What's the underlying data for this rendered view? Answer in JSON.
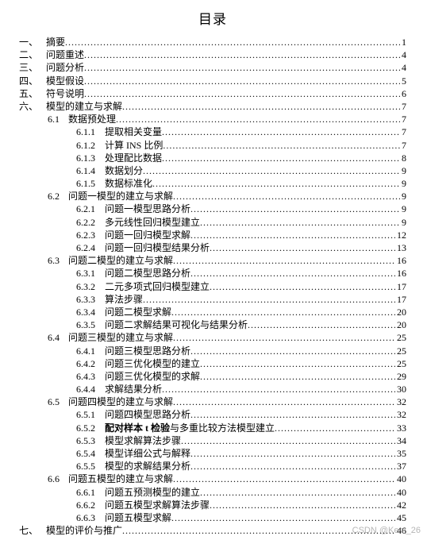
{
  "title": "目录",
  "watermark": "CSDN @Kem_26",
  "entries": [
    {
      "lvl": 1,
      "num": "一、",
      "label": "摘要",
      "pg": 1
    },
    {
      "lvl": 1,
      "num": "二、",
      "label": "问题重述",
      "pg": 4
    },
    {
      "lvl": 1,
      "num": "三、",
      "label": "问题分析",
      "pg": 4
    },
    {
      "lvl": 1,
      "num": "四、",
      "label": "模型假设",
      "pg": 5
    },
    {
      "lvl": 1,
      "num": "五、",
      "label": "符号说明",
      "pg": 6
    },
    {
      "lvl": 1,
      "num": "六、",
      "label": "模型的建立与求解",
      "pg": 7
    },
    {
      "lvl": 2,
      "num": "6.1",
      "label": "数据预处理",
      "pg": 7
    },
    {
      "lvl": 3,
      "num": "6.1.1",
      "label": "提取相关变量",
      "pg": 7
    },
    {
      "lvl": 3,
      "num": "6.1.2",
      "label": "计算 INS 比例",
      "pg": 7
    },
    {
      "lvl": 3,
      "num": "6.1.3",
      "label": "处理配比数据",
      "pg": 8
    },
    {
      "lvl": 3,
      "num": "6.1.4",
      "label": "数据划分",
      "pg": 9
    },
    {
      "lvl": 3,
      "num": "6.1.5",
      "label": "数据标准化",
      "pg": 9
    },
    {
      "lvl": 2,
      "num": "6.2",
      "label": "问题一模型的建立与求解",
      "pg": 9
    },
    {
      "lvl": 3,
      "num": "6.2.1",
      "label": "问题一模型思路分析",
      "pg": 9
    },
    {
      "lvl": 3,
      "num": "6.2.2",
      "label": "多元线性回归模型建立",
      "pg": 9
    },
    {
      "lvl": 3,
      "num": "6.2.3",
      "label": "问题一回归模型求解",
      "pg": 12
    },
    {
      "lvl": 3,
      "num": "6.2.4",
      "label": "问题一回归模型结果分析",
      "pg": 13
    },
    {
      "lvl": 2,
      "num": "6.3",
      "label": "问题二模型的建立与求解",
      "pg": 16
    },
    {
      "lvl": 3,
      "num": "6.3.1",
      "label": "问题二模型思路分析",
      "pg": 16
    },
    {
      "lvl": 3,
      "num": "6.3.2",
      "label": "二元多项式回归模型建立",
      "pg": 17
    },
    {
      "lvl": 3,
      "num": "6.3.3",
      "label": "算法步骤",
      "pg": 17
    },
    {
      "lvl": 3,
      "num": "6.3.4",
      "label": "问题二模型求解",
      "pg": 20
    },
    {
      "lvl": 3,
      "num": "6.3.5",
      "label": "问题二求解结果可视化与结果分析",
      "pg": 20
    },
    {
      "lvl": 2,
      "num": "6.4",
      "label": "问题三模型的建立与求解",
      "pg": 25
    },
    {
      "lvl": 3,
      "num": "6.4.1",
      "label": "问题三模型思路分析",
      "pg": 25
    },
    {
      "lvl": 3,
      "num": "6.4.2",
      "label": "问题三优化模型的建立",
      "pg": 25
    },
    {
      "lvl": 3,
      "num": "6.4.3",
      "label": "问题三优化模型的求解",
      "pg": 29
    },
    {
      "lvl": 3,
      "num": "6.4.4",
      "label": "求解结果分析",
      "pg": 30
    },
    {
      "lvl": 2,
      "num": "6.5",
      "label": "问题四模型的建立与求解",
      "pg": 32
    },
    {
      "lvl": 3,
      "num": "6.5.1",
      "label": "问题四模型思路分析",
      "pg": 32
    },
    {
      "lvl": 3,
      "num": "6.5.2",
      "label": "配对样本 t 检验",
      "label2": "与多重比较方法模型建立",
      "pg": 33,
      "bold": true
    },
    {
      "lvl": 3,
      "num": "6.5.3",
      "label": "模型求解算法步骤",
      "pg": 34
    },
    {
      "lvl": 3,
      "num": "6.5.4",
      "label": "模型详细公式与解释",
      "pg": 35
    },
    {
      "lvl": 3,
      "num": "6.5.5",
      "label": "模型的求解结果分析",
      "pg": 37
    },
    {
      "lvl": 2,
      "num": "6.6",
      "label": "问题五模型的建立与求解",
      "pg": 40
    },
    {
      "lvl": 3,
      "num": "6.6.1",
      "label": "问题五预测模型的建立",
      "pg": 40
    },
    {
      "lvl": 3,
      "num": "6.6.2",
      "label": "问题五模型求解算法步骤",
      "pg": 42
    },
    {
      "lvl": 3,
      "num": "6.6.3",
      "label": "问题五模型求解",
      "pg": 45
    },
    {
      "lvl": 1,
      "num": "七、",
      "label": "模型的评价与推广",
      "pg": 46
    }
  ]
}
